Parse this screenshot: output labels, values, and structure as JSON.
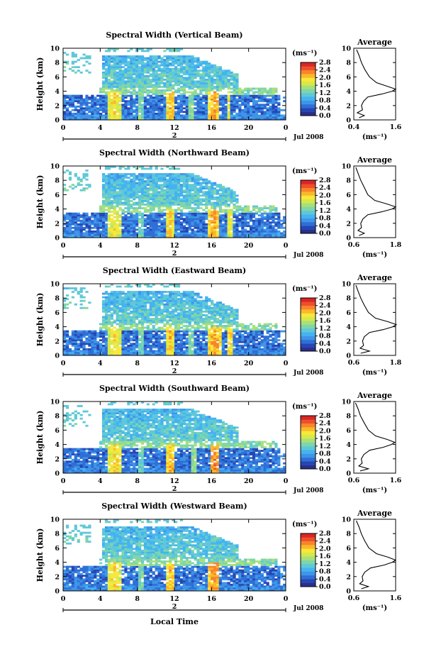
{
  "figure": {
    "xlabel": "Local Time",
    "date_label": "Jul 2008",
    "day_label": "2",
    "cbar_unit": "(ms⁻¹)",
    "avg_title": "Average",
    "avg_xlabel": "(ms⁻¹)"
  },
  "colorscale": [
    "#2a2f8c",
    "#2646b4",
    "#2f6fd6",
    "#3f95e8",
    "#44b3f0",
    "#5fc8d8",
    "#7fd6a8",
    "#a8e07a",
    "#d6e84a",
    "#f8e83a",
    "#fbb82a",
    "#f8852a",
    "#ef4f2a",
    "#d92626"
  ],
  "chart_data": [
    {
      "type": "heatmap",
      "title": "Spectral Width (Vertical Beam)",
      "xlabel": "",
      "ylabel": "Height (km)",
      "xlim": [
        0,
        24
      ],
      "ylim": [
        0,
        10
      ],
      "xticks": [
        "0",
        "4",
        "8",
        "12",
        "16",
        "20",
        "0"
      ],
      "yticks": [
        "0",
        "2",
        "4",
        "6",
        "8",
        "10"
      ],
      "colorbar": {
        "min": 0.0,
        "max": 2.8,
        "ticks": [
          "0.0",
          "0.4",
          "0.8",
          "1.2",
          "1.6",
          "2.0",
          "2.4",
          "2.8"
        ]
      },
      "convective_cells": [
        {
          "t": 5.6,
          "w": 1.4,
          "v": 2.3
        },
        {
          "t": 8.4,
          "w": 0.6,
          "v": 1.6
        },
        {
          "t": 11.6,
          "w": 0.8,
          "v": 2.4
        },
        {
          "t": 13.8,
          "w": 0.7,
          "v": 1.7
        },
        {
          "t": 16.3,
          "w": 1.3,
          "v": 2.5
        },
        {
          "t": 17.8,
          "w": 0.5,
          "v": 2.2
        }
      ],
      "average": {
        "xlim": [
          0.4,
          1.6
        ],
        "xticks": [
          "0.4",
          "1.6"
        ],
        "yticks": [
          "0",
          "2",
          "4",
          "6",
          "8",
          "10"
        ],
        "heights": [
          0.3,
          0.6,
          1.0,
          1.4,
          2.0,
          2.6,
          3.2,
          3.6,
          4.0,
          4.3,
          4.7,
          5.2,
          6.0,
          7.0,
          8.0,
          9.0,
          9.8
        ],
        "values": [
          0.55,
          0.7,
          0.5,
          0.65,
          0.62,
          0.68,
          0.8,
          1.2,
          1.5,
          1.6,
          1.35,
          1.05,
          0.85,
          0.72,
          0.62,
          0.55,
          0.48
        ]
      }
    },
    {
      "type": "heatmap",
      "title": "Spectral Width (Northward Beam)",
      "xlabel": "",
      "ylabel": "Height (km)",
      "xlim": [
        0,
        24
      ],
      "ylim": [
        0,
        10
      ],
      "xticks": [
        "0",
        "4",
        "8",
        "12",
        "16",
        "20",
        "0"
      ],
      "yticks": [
        "0",
        "2",
        "4",
        "6",
        "8",
        "10"
      ],
      "colorbar": {
        "min": 0.0,
        "max": 2.8,
        "ticks": [
          "0.0",
          "0.4",
          "0.8",
          "1.2",
          "1.6",
          "2.0",
          "2.4",
          "2.8"
        ]
      },
      "convective_cells": [
        {
          "t": 5.5,
          "w": 1.5,
          "v": 2.2
        },
        {
          "t": 8.3,
          "w": 0.6,
          "v": 1.5
        },
        {
          "t": 11.5,
          "w": 0.8,
          "v": 2.3
        },
        {
          "t": 16.2,
          "w": 1.3,
          "v": 2.5
        },
        {
          "t": 18.0,
          "w": 0.6,
          "v": 2.1
        }
      ],
      "average": {
        "xlim": [
          0.6,
          1.8
        ],
        "xticks": [
          "0.6",
          "1.8"
        ],
        "yticks": [
          "0",
          "2",
          "4",
          "6",
          "8",
          "10"
        ],
        "heights": [
          0.3,
          0.6,
          1.0,
          1.4,
          2.0,
          2.6,
          3.2,
          3.6,
          4.0,
          4.3,
          4.7,
          5.2,
          6.0,
          7.0,
          8.0,
          9.0,
          9.8
        ],
        "values": [
          0.75,
          0.9,
          0.72,
          0.82,
          0.8,
          0.86,
          1.0,
          1.4,
          1.7,
          1.8,
          1.55,
          1.2,
          1.0,
          0.9,
          0.8,
          0.72,
          0.66
        ]
      }
    },
    {
      "type": "heatmap",
      "title": "Spectral Width (Eastward Beam)",
      "xlabel": "",
      "ylabel": "Height (km)",
      "xlim": [
        0,
        24
      ],
      "ylim": [
        0,
        10
      ],
      "xticks": [
        "0",
        "4",
        "8",
        "12",
        "16",
        "20",
        "0"
      ],
      "yticks": [
        "0",
        "2",
        "4",
        "6",
        "8",
        "10"
      ],
      "colorbar": {
        "min": 0.0,
        "max": 2.8,
        "ticks": [
          "0.0",
          "0.4",
          "0.8",
          "1.2",
          "1.6",
          "2.0",
          "2.4",
          "2.8"
        ]
      },
      "convective_cells": [
        {
          "t": 5.6,
          "w": 1.4,
          "v": 2.2
        },
        {
          "t": 8.5,
          "w": 0.6,
          "v": 1.5
        },
        {
          "t": 11.6,
          "w": 0.8,
          "v": 2.4
        },
        {
          "t": 13.9,
          "w": 0.6,
          "v": 1.6
        },
        {
          "t": 16.4,
          "w": 1.3,
          "v": 2.5
        },
        {
          "t": 18.0,
          "w": 0.6,
          "v": 2.3
        }
      ],
      "average": {
        "xlim": [
          0.6,
          1.8
        ],
        "xticks": [
          "0.6",
          "1.8"
        ],
        "yticks": [
          "0",
          "2",
          "4",
          "6",
          "8",
          "10"
        ],
        "heights": [
          0.3,
          0.6,
          1.0,
          1.4,
          2.0,
          2.6,
          3.2,
          3.6,
          4.0,
          4.3,
          4.7,
          5.2,
          6.0,
          7.0,
          8.0,
          9.0,
          9.8
        ],
        "values": [
          0.8,
          1.05,
          0.78,
          0.88,
          0.85,
          0.9,
          1.05,
          1.45,
          1.72,
          1.82,
          1.58,
          1.22,
          1.02,
          0.9,
          0.8,
          0.72,
          0.66
        ]
      }
    },
    {
      "type": "heatmap",
      "title": "Spectral Width (Southward Beam)",
      "xlabel": "",
      "ylabel": "Height (km)",
      "xlim": [
        0,
        24
      ],
      "ylim": [
        0,
        10
      ],
      "xticks": [
        "0",
        "4",
        "8",
        "12",
        "16",
        "20",
        "0"
      ],
      "yticks": [
        "0",
        "2",
        "4",
        "6",
        "8",
        "10"
      ],
      "colorbar": {
        "min": 0.0,
        "max": 2.8,
        "ticks": [
          "0.0",
          "0.4",
          "0.8",
          "1.2",
          "1.6",
          "2.0",
          "2.4",
          "2.8"
        ]
      },
      "convective_cells": [
        {
          "t": 5.6,
          "w": 1.4,
          "v": 2.3
        },
        {
          "t": 8.4,
          "w": 0.6,
          "v": 1.5
        },
        {
          "t": 11.6,
          "w": 0.8,
          "v": 2.4
        },
        {
          "t": 14.2,
          "w": 0.6,
          "v": 1.7
        },
        {
          "t": 16.3,
          "w": 1.1,
          "v": 2.6
        }
      ],
      "average": {
        "xlim": [
          0.6,
          1.6
        ],
        "xticks": [
          "0.6",
          "1.6"
        ],
        "yticks": [
          "0",
          "2",
          "4",
          "6",
          "8",
          "10"
        ],
        "heights": [
          0.3,
          0.6,
          1.0,
          1.4,
          2.0,
          2.6,
          3.2,
          3.6,
          4.0,
          4.3,
          4.7,
          5.2,
          6.0,
          7.0,
          8.0,
          9.0,
          9.8
        ],
        "values": [
          0.75,
          0.95,
          0.72,
          0.8,
          0.78,
          0.84,
          0.98,
          1.3,
          1.5,
          1.58,
          1.4,
          1.12,
          0.95,
          0.85,
          0.76,
          0.7,
          0.64
        ]
      }
    },
    {
      "type": "heatmap",
      "title": "Spectral Width (Westward Beam)",
      "xlabel": "Local Time",
      "ylabel": "Height (km)",
      "xlim": [
        0,
        24
      ],
      "ylim": [
        0,
        10
      ],
      "xticks": [
        "0",
        "4",
        "8",
        "12",
        "16",
        "20",
        "0"
      ],
      "yticks": [
        "0",
        "2",
        "4",
        "6",
        "8",
        "10"
      ],
      "colorbar": {
        "min": 0.0,
        "max": 2.8,
        "ticks": [
          "0.0",
          "0.4",
          "0.8",
          "1.2",
          "1.6",
          "2.0",
          "2.4",
          "2.8"
        ]
      },
      "convective_cells": [
        {
          "t": 5.5,
          "w": 1.5,
          "v": 2.3
        },
        {
          "t": 8.4,
          "w": 0.6,
          "v": 1.6
        },
        {
          "t": 11.6,
          "w": 0.8,
          "v": 2.4
        },
        {
          "t": 16.3,
          "w": 1.3,
          "v": 2.6
        }
      ],
      "average": {
        "xlim": [
          0.6,
          1.6
        ],
        "xticks": [
          "0.6",
          "1.6"
        ],
        "yticks": [
          "0",
          "2",
          "4",
          "6",
          "8",
          "10"
        ],
        "heights": [
          0.3,
          0.6,
          1.0,
          1.4,
          2.0,
          2.6,
          3.2,
          3.6,
          4.0,
          4.3,
          4.7,
          5.2,
          6.0,
          7.0,
          8.0,
          9.0,
          9.8
        ],
        "values": [
          0.78,
          0.95,
          0.74,
          0.82,
          0.8,
          0.86,
          1.0,
          1.32,
          1.52,
          1.6,
          1.42,
          1.14,
          0.96,
          0.86,
          0.78,
          0.72,
          0.66
        ]
      }
    }
  ]
}
